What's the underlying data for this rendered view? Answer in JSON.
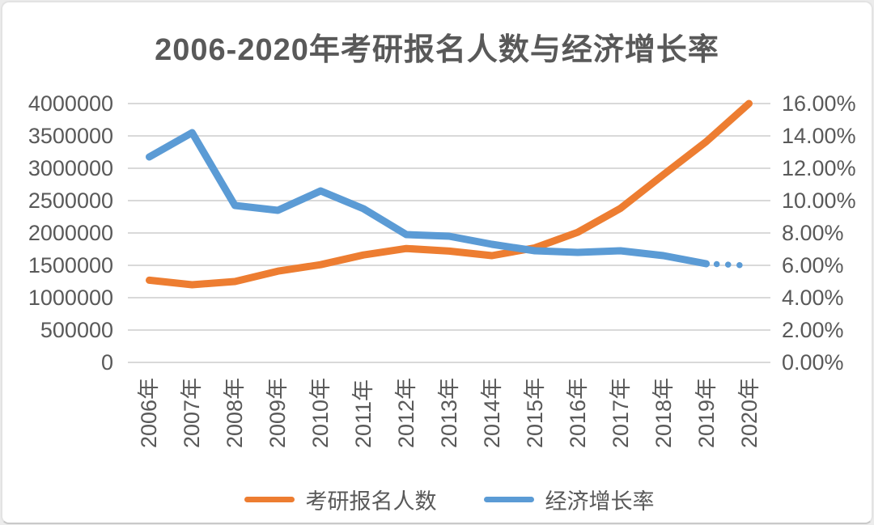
{
  "chart": {
    "title": "2006-2020年考研报名人数与经济增长率"
  },
  "chart_data": {
    "type": "line",
    "title": "2006-2020年考研报名人数与经济增长率",
    "categories": [
      "2006年",
      "2007年",
      "2008年",
      "2009年",
      "2010年",
      "2011年",
      "2012年",
      "2013年",
      "2014年",
      "2015年",
      "2016年",
      "2017年",
      "2018年",
      "2019年",
      "2020年"
    ],
    "series": [
      {
        "name": "考研报名人数",
        "axis": "left",
        "color": "#ED7D31",
        "values": [
          1270000,
          1200000,
          1250000,
          1410000,
          1510000,
          1660000,
          1760000,
          1720000,
          1650000,
          1770000,
          2010000,
          2380000,
          2900000,
          3410000,
          4000000
        ]
      },
      {
        "name": "经济增长率",
        "axis": "right",
        "color": "#5B9BD5",
        "values": [
          12.7,
          14.2,
          9.7,
          9.4,
          10.6,
          9.5,
          7.9,
          7.8,
          7.3,
          6.9,
          6.8,
          6.9,
          6.6,
          6.1,
          6.0
        ],
        "last_segment_style": "dotted-forecast"
      }
    ],
    "left_axis": {
      "min": 0,
      "max": 4000000,
      "step": 500000,
      "tick_labels": [
        "4000000",
        "3500000",
        "3000000",
        "2500000",
        "2000000",
        "1500000",
        "1000000",
        "500000",
        "0"
      ]
    },
    "right_axis": {
      "min": 0,
      "max": 16,
      "step": 2,
      "tick_labels": [
        "16.00%",
        "14.00%",
        "12.00%",
        "10.00%",
        "8.00%",
        "6.00%",
        "4.00%",
        "2.00%",
        "0.00%"
      ]
    },
    "grid": "horizontal",
    "legend_position": "bottom"
  },
  "colors": {
    "text": "#595959",
    "gridline": "#D9D9D9",
    "applicants_line": "#ED7D31",
    "growth_line": "#5B9BD5"
  }
}
